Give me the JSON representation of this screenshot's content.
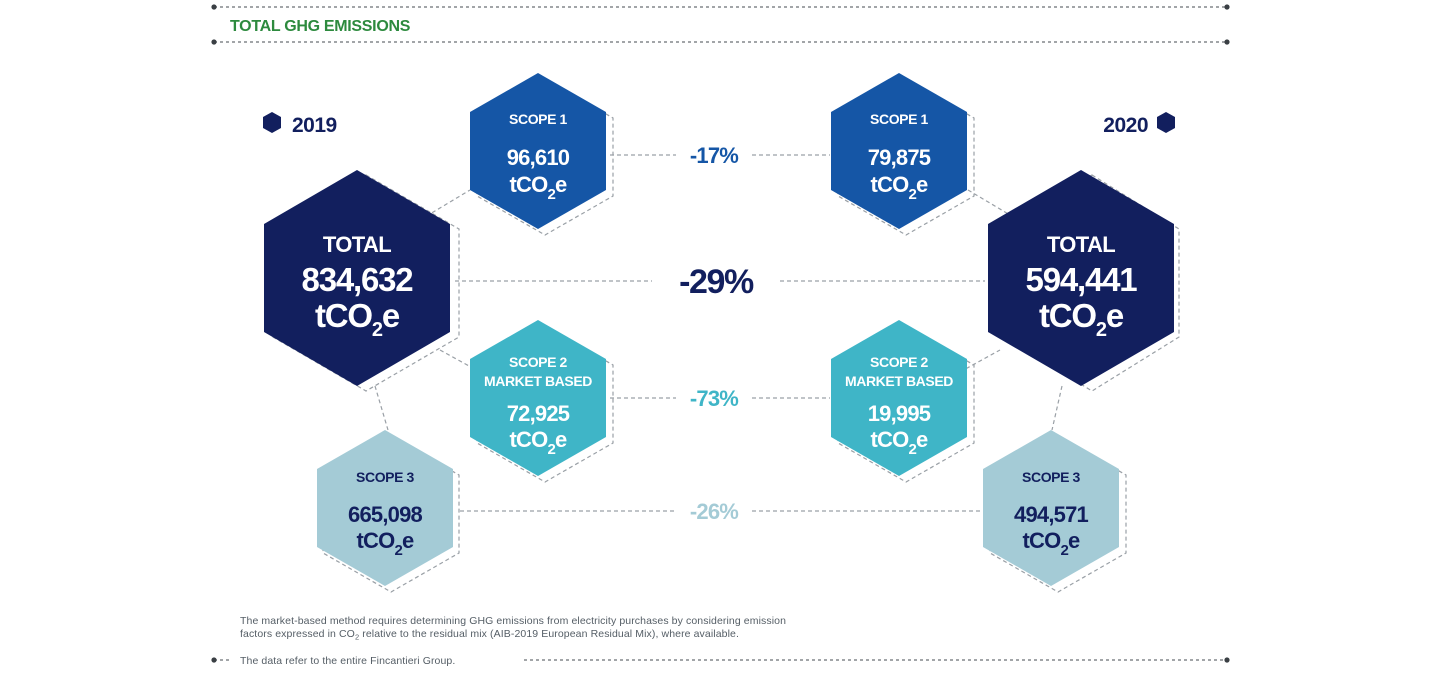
{
  "header": {
    "title": "TOTAL GHG EMISSIONS"
  },
  "years": {
    "left": "2019",
    "right": "2020"
  },
  "colors": {
    "navy": "#121f5e",
    "blue": "#1556a6",
    "cyan": "#3fb5c7",
    "light": "#a4cbd6",
    "green": "#2d8a3e",
    "dash": "#9aa0a6"
  },
  "unit": {
    "base": "tCO",
    "sub": "2",
    "tail": "e"
  },
  "hexagons": {
    "total_2019": {
      "label": "TOTAL",
      "value": "834,632"
    },
    "total_2020": {
      "label": "TOTAL",
      "value": "594,441"
    },
    "scope1_2019": {
      "label": "SCOPE 1",
      "value": "96,610"
    },
    "scope1_2020": {
      "label": "SCOPE 1",
      "value": "79,875"
    },
    "scope2_2019": {
      "label_line1": "SCOPE 2",
      "label_line2": "MARKET BASED",
      "value": "72,925"
    },
    "scope2_2020": {
      "label_line1": "SCOPE 2",
      "label_line2": "MARKET BASED",
      "value": "19,995"
    },
    "scope3_2019": {
      "label": "SCOPE 3",
      "value": "665,098"
    },
    "scope3_2020": {
      "label": "SCOPE 3",
      "value": "494,571"
    }
  },
  "changes": {
    "scope1": "-17%",
    "total": "-29%",
    "scope2": "-73%",
    "scope3": "-26%"
  },
  "footnote": {
    "line1": "The market-based method requires determining GHG emissions from electricity purchases by considering emission",
    "line2_pre": "factors expressed in CO",
    "line2_sub": "2",
    "line2_post": " relative to the residual mix (AIB-2019 European Residual Mix), where available.",
    "scope_note": "The data refer to the entire Fincantieri Group."
  }
}
